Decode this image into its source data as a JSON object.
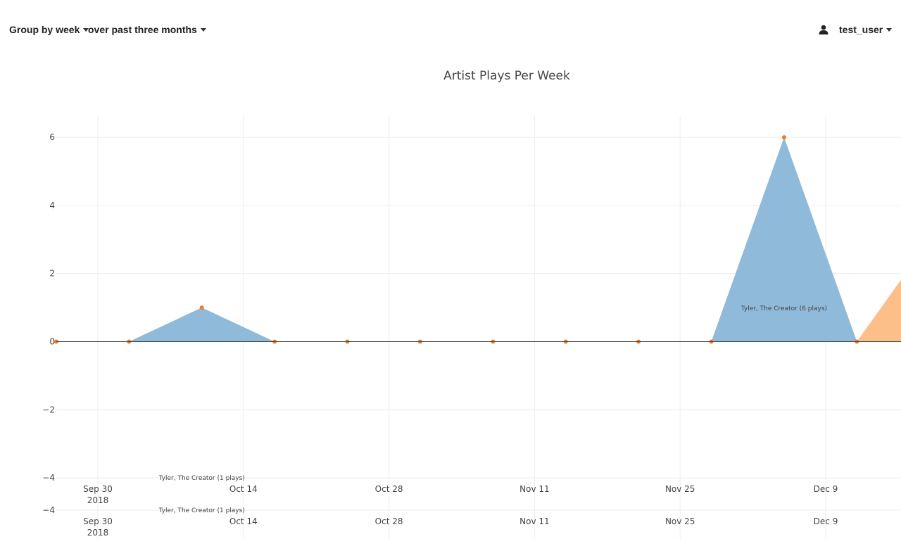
{
  "controls": {
    "group_by": "Group by week",
    "range": "over past three months"
  },
  "user": {
    "name": "test_user",
    "icon": "user-icon"
  },
  "chart_data": {
    "type": "area",
    "title": "Artist Plays Per Week",
    "xlabel": "",
    "ylabel": "",
    "ylim": [
      -4,
      6.5
    ],
    "yticks": [
      6,
      4,
      2,
      0,
      -4
    ],
    "yticks_neg": [
      "−2",
      "−4",
      "−4"
    ],
    "xticks": [
      {
        "date": "2018-09-30",
        "label": "Sep 30",
        "sub": "2018"
      },
      {
        "date": "2018-10-14",
        "label": "Oct 14",
        "sub": ""
      },
      {
        "date": "2018-10-28",
        "label": "Oct 28",
        "sub": ""
      },
      {
        "date": "2018-11-11",
        "label": "Nov 11",
        "sub": ""
      },
      {
        "date": "2018-11-25",
        "label": "Nov 25",
        "sub": ""
      },
      {
        "date": "2018-12-09",
        "label": "Dec 9",
        "sub": ""
      }
    ],
    "series": [
      {
        "color": "#8fbad9",
        "points": [
          {
            "x": "2018-09-26",
            "y": 0
          },
          {
            "x": "2018-10-03",
            "y": 0
          },
          {
            "x": "2018-10-10",
            "y": 1
          },
          {
            "x": "2018-10-17",
            "y": 0
          },
          {
            "x": "2018-10-24",
            "y": 0
          },
          {
            "x": "2018-10-31",
            "y": 0
          },
          {
            "x": "2018-11-07",
            "y": 0
          },
          {
            "x": "2018-11-14",
            "y": 0
          },
          {
            "x": "2018-11-21",
            "y": 0
          },
          {
            "x": "2018-11-28",
            "y": 0
          },
          {
            "x": "2018-12-05",
            "y": 6
          },
          {
            "x": "2018-12-12",
            "y": 0
          }
        ]
      },
      {
        "color": "#fdbf8a",
        "points": [
          {
            "x": "2018-12-12",
            "y": 0
          },
          {
            "x": "2018-12-19",
            "y": 3
          }
        ]
      }
    ],
    "marker_color": "#f07b26",
    "annotations": [
      {
        "x": "2018-12-05",
        "y": 1,
        "text": "Tyler, The Creator (6 plays)"
      },
      {
        "x": "2018-10-10",
        "y": -4,
        "text": "Tyler, The Creator (1 plays)"
      }
    ]
  }
}
